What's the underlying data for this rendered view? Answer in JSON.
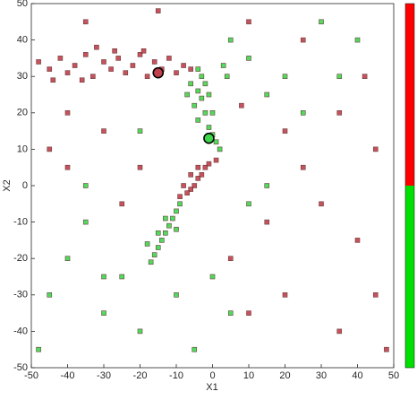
{
  "chart_data": {
    "type": "scatter",
    "xlabel": "X1",
    "ylabel": "X2",
    "xlim": [
      -50,
      50
    ],
    "ylim": [
      -50,
      50
    ],
    "xticks": [
      -50,
      -40,
      -30,
      -20,
      -10,
      0,
      10,
      20,
      30,
      40,
      50
    ],
    "yticks": [
      -50,
      -40,
      -30,
      -20,
      -10,
      0,
      10,
      20,
      30,
      40,
      50
    ],
    "colorbar": [
      "#ff0000",
      "#00e000"
    ],
    "series": [
      {
        "color": "#c0404c",
        "marker": "square",
        "x": [
          -48,
          -45,
          -42,
          -40,
          -38,
          -35,
          -33,
          -30,
          -28,
          -26,
          -24,
          -22,
          -20,
          -18,
          -16,
          -14,
          -12,
          -10,
          -8,
          -6,
          -44,
          -36,
          -27,
          -19,
          -32,
          1,
          -1,
          -2,
          -3,
          -4,
          -5,
          -6,
          -7,
          -9,
          -4,
          -6,
          -8,
          10,
          25,
          35,
          45,
          30,
          40,
          20,
          35,
          15,
          25,
          -45,
          -40,
          -30,
          -20,
          -35,
          -15,
          5,
          10,
          45,
          42,
          -25,
          -40,
          20,
          8,
          48
        ],
        "y": [
          34,
          32,
          35,
          31,
          33,
          36,
          30,
          34,
          32,
          35,
          31,
          33,
          36,
          30,
          34,
          32,
          35,
          31,
          33,
          32,
          29,
          29,
          37,
          37,
          38,
          7,
          6,
          5,
          3,
          2,
          0,
          -1,
          -2,
          -3,
          5,
          3,
          0,
          45,
          40,
          20,
          10,
          -5,
          -15,
          -30,
          -40,
          -10,
          5,
          10,
          20,
          15,
          5,
          45,
          48,
          -20,
          -35,
          -30,
          30,
          -5,
          5,
          15,
          22,
          -45
        ]
      },
      {
        "color": "#3cd84a",
        "marker": "square",
        "x": [
          -4,
          -3,
          -2,
          -4,
          -3,
          -5,
          -2,
          -4,
          -1,
          0,
          1,
          2,
          -6,
          -1,
          0,
          3,
          -7,
          4,
          -9,
          -10,
          -11,
          -12,
          -13,
          -14,
          -15,
          -16,
          -17,
          -13,
          -15,
          -18,
          -10,
          10,
          20,
          30,
          15,
          5,
          25,
          40,
          35,
          -25,
          -30,
          -40,
          -45,
          -20,
          -35,
          -10,
          -5,
          0,
          5,
          -48,
          -30,
          10,
          -20,
          -35,
          15
        ],
        "y": [
          32,
          30,
          28,
          26,
          24,
          22,
          20,
          18,
          16,
          14,
          12,
          10,
          28,
          25,
          20,
          33,
          25,
          30,
          -5,
          -7,
          -9,
          -11,
          -13,
          -15,
          -17,
          -19,
          -21,
          -9,
          -13,
          -16,
          -12,
          35,
          30,
          45,
          25,
          40,
          20,
          40,
          30,
          -25,
          -35,
          -20,
          -30,
          -40,
          -10,
          -30,
          -45,
          -25,
          -35,
          -45,
          -25,
          -5,
          15,
          0,
          0
        ]
      },
      {
        "color": "#c0404c",
        "marker": "circle",
        "x": [
          -15
        ],
        "y": [
          31
        ]
      },
      {
        "color": "#3cd84a",
        "marker": "circle",
        "x": [
          -1
        ],
        "y": [
          13
        ]
      }
    ]
  }
}
